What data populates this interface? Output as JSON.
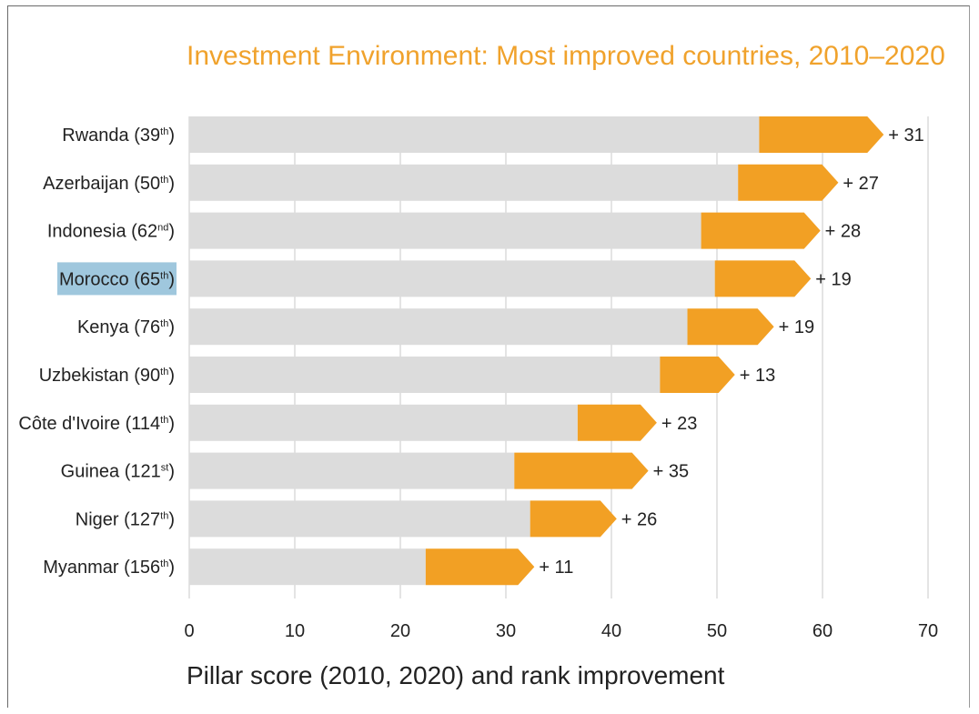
{
  "chart_data": {
    "type": "bar",
    "title": "Investment Environment: Most improved countries, 2010–2020",
    "xlabel": "Pillar score (2010, 2020) and rank improvement",
    "ylabel": "",
    "xlim": [
      0,
      70
    ],
    "x_ticks": [
      "0",
      "10",
      "20",
      "30",
      "40",
      "50",
      "60",
      "70"
    ],
    "grid": "vertical",
    "categories": [
      {
        "name": "Rwanda",
        "rank": "39",
        "suffix": "th"
      },
      {
        "name": "Azerbaijan",
        "rank": "50",
        "suffix": "th"
      },
      {
        "name": "Indonesia",
        "rank": "62",
        "suffix": "nd"
      },
      {
        "name": "Morocco",
        "rank": "65",
        "suffix": "th"
      },
      {
        "name": "Kenya",
        "rank": "76",
        "suffix": "th"
      },
      {
        "name": "Uzbekistan",
        "rank": "90",
        "suffix": "th"
      },
      {
        "name": "Côte d'Ivoire",
        "rank": "114",
        "suffix": "th"
      },
      {
        "name": "Guinea",
        "rank": "121",
        "suffix": "st"
      },
      {
        "name": "Niger",
        "rank": "127",
        "suffix": "th"
      },
      {
        "name": "Myanmar",
        "rank": "156",
        "suffix": "th"
      }
    ],
    "series": [
      {
        "values": [
          54.0,
          52.0,
          48.5,
          49.8,
          47.2,
          44.6,
          36.8,
          30.8,
          32.3,
          22.4
        ]
      },
      {
        "values": [
          65.8,
          61.5,
          59.8,
          58.9,
          55.4,
          51.7,
          44.3,
          43.5,
          40.5,
          32.7
        ]
      }
    ],
    "rank_improvement": [
      "+ 31",
      "+ 27",
      "+ 28",
      "+ 19",
      "+ 19",
      "+ 13",
      "+ 23",
      "+ 35",
      "+ 26",
      "+ 11"
    ],
    "highlighted_category": "Morocco",
    "colors": {
      "bar_2010": "#dcdcdc",
      "arrow_2020": "#f2a024",
      "title": "#f0a22c",
      "highlight": "#9fc7dd",
      "grid": "#c9c9c9"
    }
  }
}
